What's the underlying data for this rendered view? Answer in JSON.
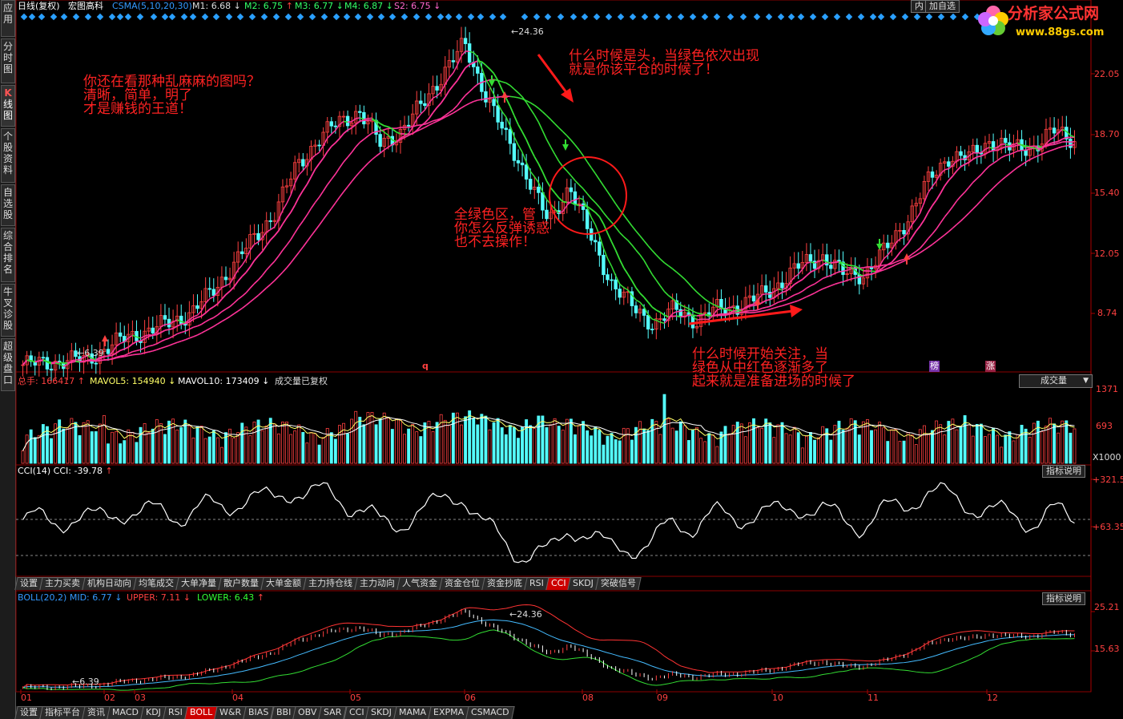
{
  "left_nav": [
    {
      "label": "应用"
    },
    {
      "label": "分时图"
    },
    {
      "label": "K线图",
      "k": "K"
    },
    {
      "label": "个股资料"
    },
    {
      "label": "自选股"
    },
    {
      "label": "综合排名"
    },
    {
      "label": "牛叉诊股"
    },
    {
      "label": "超级盘口"
    }
  ],
  "main_header": {
    "period": "日线(复权)",
    "name": "宏图高科",
    "ind": "CSMA(5,10,20,30)",
    "m1": "M1: 6.68",
    "m2": "M2: 6.75",
    "m3": "M3: 6.77",
    "m4": "M4: 6.87",
    "s2": "S2: 6.75"
  },
  "top_right_buttons": {
    "nei": "内",
    "jiazixuan": "加自选"
  },
  "logo": {
    "text": "分析家公式网",
    "url": "www.88gs.com"
  },
  "main_axis": [
    "22.05",
    "18.70",
    "15.40",
    "12.05",
    "8.74"
  ],
  "price_marks": {
    "high": "24.36",
    "low": "6.39"
  },
  "chart_markers": {
    "q": "q",
    "bang": "榜",
    "zhang": "涨"
  },
  "annotations": {
    "a1": "你还在看那种乱麻麻的图吗？\n清晰，简单，明了\n才是赚钱的王道！",
    "a2": "什么时候是头，当绿色依次出现\n就是你该平仓的时候了！",
    "a3": "全绿色区，管\n你怎么反弹诱惑\n也不去操作！",
    "a4": "什么时候开始关注，当\n绿色从中红色逐渐多了\n起来就是准备进场的时候了"
  },
  "vol_header": {
    "total": "总手: 166417",
    "mavol5": "MAVOL5: 154940",
    "mavol10": "MAVOL10: 173409",
    "note": "成交量已复权",
    "select": "成交量"
  },
  "vol_axis": [
    "1371",
    "693",
    "X1000"
  ],
  "cci_header": {
    "label": "CCI(14)  CCI: -39.78",
    "btn": "指标说明"
  },
  "cci_axis": [
    "+321.5",
    "+63.35"
  ],
  "tabs1": [
    "设置",
    "主力买卖",
    "机构日动向",
    "均笔成交",
    "大单净量",
    "散户数量",
    "大单金额",
    "主力持仓线",
    "主力动向",
    "人气资金",
    "资金仓位",
    "资金抄底",
    "RSI",
    "CCI",
    "SKDJ",
    "突破信号"
  ],
  "tabs1_active": "CCI",
  "boll_header": {
    "label": "BOLL(20,2)",
    "mid": "MID: 6.77",
    "upper": "UPPER: 7.11",
    "lower": "LOWER: 6.43",
    "btn": "指标说明"
  },
  "boll_axis": [
    "25.21",
    "15.63"
  ],
  "boll_marks": {
    "high": "24.36",
    "low": "6.39"
  },
  "months": [
    "01",
    "02",
    "03",
    "04",
    "05",
    "06",
    "08",
    "09",
    "10",
    "11",
    "12"
  ],
  "tabs2": [
    "设置",
    "指标平台",
    "资讯",
    "MACD",
    "KDJ",
    "RSI",
    "BOLL",
    "W&R",
    "BIAS",
    "BBI",
    "OBV",
    "SAR",
    "CCI",
    "SKDJ",
    "MAMA",
    "EXPMA",
    "CSMACD"
  ],
  "tabs2_active": "BOLL",
  "colors": {
    "up": "#ff4040",
    "down": "#54ffff",
    "ma_pink": "#ff3399",
    "ma_green": "#33dd33",
    "note": "#ff2222"
  },
  "chart_data": {
    "type": "candlestick",
    "ylim": [
      6.0,
      25.5
    ],
    "price_axis_ticks": [
      22.05,
      18.7,
      15.4,
      12.05,
      8.74
    ],
    "high": 24.36,
    "low": 6.39,
    "months": [
      "01",
      "02",
      "03",
      "04",
      "05",
      "06",
      "08",
      "09",
      "10",
      "11",
      "12"
    ],
    "key_prices": [
      6.4,
      6.5,
      6.6,
      6.7,
      7.3,
      8.0,
      8.3,
      8.8,
      9.3,
      10.5,
      12.0,
      13.5,
      15.0,
      17.5,
      19.0,
      20.0,
      20.6,
      18.8,
      19.5,
      21.0,
      22.8,
      24.36,
      21.6,
      19.0,
      17.0,
      14.3,
      16.5,
      13.5,
      11.0,
      9.6,
      8.7,
      9.5,
      8.9,
      9.5,
      9.7,
      10.2,
      11.0,
      12.0,
      12.5,
      11.5,
      11.5,
      12.8,
      14.5,
      16.6,
      18.1,
      18.0,
      19.0,
      18.5,
      18.6,
      19.5,
      19.0
    ],
    "cci": {
      "last": -39.78,
      "ticks": [
        321.5,
        63.35
      ]
    },
    "volume": {
      "total": 166417,
      "mavol5": 154940,
      "mavol10": 173409,
      "ticks": [
        1371,
        693
      ],
      "unit": "X1000"
    },
    "boll": {
      "mid": 6.77,
      "upper": 7.11,
      "lower": 6.43,
      "ticks": [
        25.21,
        15.63
      ]
    }
  }
}
